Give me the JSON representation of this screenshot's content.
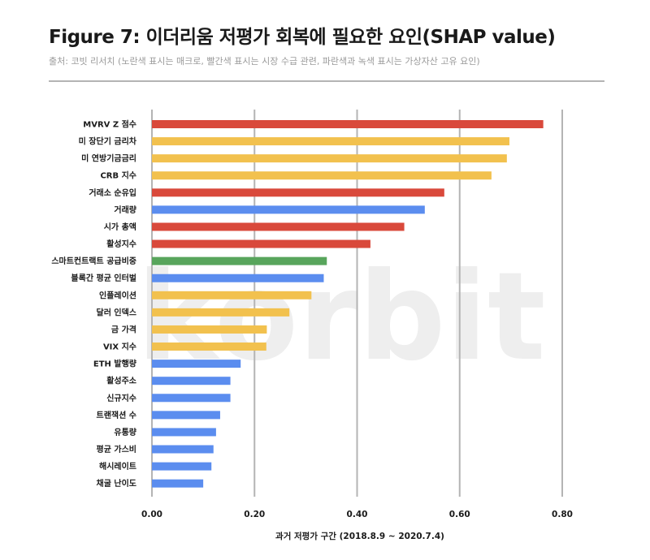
{
  "header": {
    "title": "Figure 7: 이더리움 저평가 회복에 필요한 요인(SHAP value)",
    "subtitle": "출처: 코빗 리서치 (노란색 표시는 매크로, 빨간색 표시는 시장 수급 관련, 파란색과 녹색 표시는 가상자산 고유 요인)"
  },
  "watermark": "korbit",
  "colors": {
    "macro": "#f2c14e",
    "market": "#d9493b",
    "crypto": "#5b8def",
    "crypto_green": "#58a55c",
    "grid": "#b4b4b4"
  },
  "chart_data": {
    "type": "bar",
    "orientation": "horizontal",
    "title": "Figure 7: 이더리움 저평가 회복에 필요한 요인(SHAP value)",
    "xlabel": "과거 저평가 구간 (2018.8.9 ~ 2020.7.4)",
    "ylabel": "",
    "xlim": [
      0,
      0.8
    ],
    "xticks": [
      0,
      0.2,
      0.4,
      0.6,
      0.8
    ],
    "xtick_labels": [
      "0.00",
      "0.20",
      "0.40",
      "0.60",
      "0.80"
    ],
    "grid": "vertical",
    "categories": [
      "MVRV Z 점수",
      "미 장단기 금리차",
      "미 연방기금금리",
      "CRB 지수",
      "거래소 순유입",
      "거래량",
      "시가 총액",
      "활성지수",
      "스마트컨트랙트 공급비중",
      "블록간 평균 인터벌",
      "인플레이션",
      "달러 인덱스",
      "금 가격",
      "VIX 지수",
      "ETH 발행량",
      "활성주소",
      "신규지수",
      "트랜잭션 수",
      "유통량",
      "평균 가스비",
      "해시레이트",
      "채굴 난이도"
    ],
    "values": [
      0.763,
      0.697,
      0.692,
      0.662,
      0.57,
      0.532,
      0.492,
      0.426,
      0.341,
      0.335,
      0.311,
      0.268,
      0.224,
      0.223,
      0.173,
      0.153,
      0.153,
      0.133,
      0.125,
      0.12,
      0.116,
      0.1
    ],
    "groups": [
      "market",
      "macro",
      "macro",
      "macro",
      "market",
      "crypto",
      "market",
      "market",
      "crypto_green",
      "crypto",
      "macro",
      "macro",
      "macro",
      "macro",
      "crypto",
      "crypto",
      "crypto",
      "crypto",
      "crypto",
      "crypto",
      "crypto",
      "crypto"
    ]
  }
}
